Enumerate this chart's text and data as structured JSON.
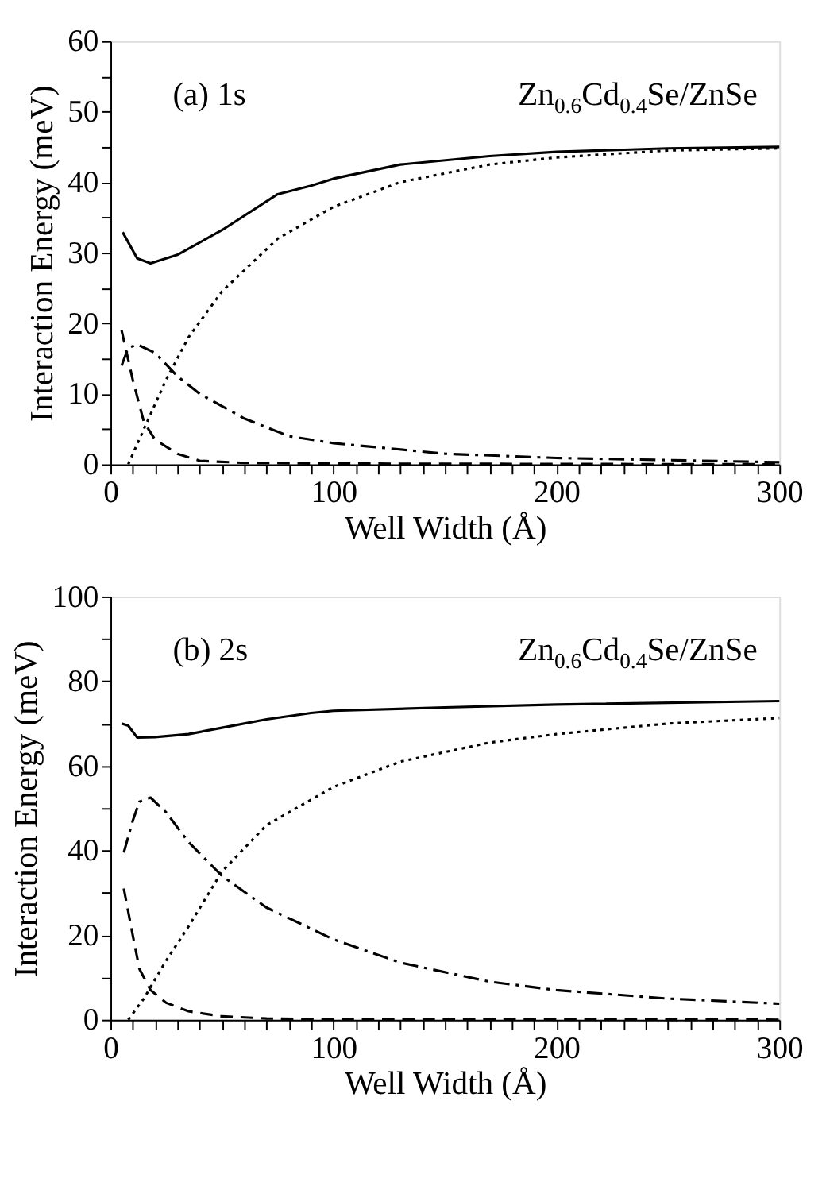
{
  "chart_data": [
    {
      "type": "line",
      "xlabel": "Well Width (Å)",
      "ylabel": "Interaction Energy (meV)",
      "annotations": [
        "(a)  1s",
        "Zn$_{0.6}$Cd$_{0.4}$Se/ZnSe"
      ],
      "xlim": [
        0,
        300
      ],
      "ylim": [
        0,
        60
      ],
      "grid": false,
      "marker": "none",
      "xticks": [
        0,
        {
          "value": 10,
          "label": null
        },
        {
          "value": 20,
          "label": null
        },
        {
          "value": 30,
          "label": null
        },
        {
          "value": 40,
          "label": null
        },
        {
          "value": 50,
          "label": null
        },
        {
          "value": 60,
          "label": null
        },
        {
          "value": 70,
          "label": null
        },
        {
          "value": 80,
          "label": null
        },
        {
          "value": 90,
          "label": null
        },
        100,
        {
          "value": 110,
          "label": null
        },
        {
          "value": 120,
          "label": null
        },
        {
          "value": 130,
          "label": null
        },
        {
          "value": 140,
          "label": null
        },
        {
          "value": 150,
          "label": null
        },
        {
          "value": 160,
          "label": null
        },
        {
          "value": 170,
          "label": null
        },
        {
          "value": 180,
          "label": null
        },
        {
          "value": 190,
          "label": null
        },
        200,
        {
          "value": 210,
          "label": null
        },
        {
          "value": 220,
          "label": null
        },
        {
          "value": 230,
          "label": null
        },
        {
          "value": 240,
          "label": null
        },
        {
          "value": 250,
          "label": null
        },
        {
          "value": 260,
          "label": null
        },
        {
          "value": 270,
          "label": null
        },
        {
          "value": 280,
          "label": null
        },
        {
          "value": 290,
          "label": null
        },
        300
      ],
      "yticks": [
        0,
        {
          "value": 5,
          "label": null
        },
        10,
        {
          "value": 15,
          "label": null
        },
        20,
        {
          "value": 25,
          "label": null
        },
        30,
        {
          "value": 35,
          "label": null
        },
        40,
        {
          "value": 45,
          "label": null
        },
        50,
        {
          "value": 55,
          "label": null
        },
        60
      ],
      "series": [
        {
          "color": "#000000",
          "line_style": "solid",
          "x": [
            5.5,
            12,
            18,
            30,
            50,
            75,
            90,
            100,
            130,
            170,
            200,
            250,
            300
          ],
          "values": [
            32.9,
            29.2,
            28.5,
            29.7,
            33.2,
            38.3,
            39.5,
            40.5,
            42.5,
            43.7,
            44.3,
            44.8,
            45
          ]
        },
        {
          "color": "#000000",
          "line_style": "dotted",
          "x": [
            8,
            15,
            25,
            35,
            50,
            75,
            100,
            130,
            170,
            200,
            250,
            300
          ],
          "values": [
            0,
            5,
            12,
            18,
            24.5,
            32,
            36.5,
            40,
            42.5,
            43.5,
            44.5,
            44.8
          ]
        },
        {
          "color": "#000000",
          "line_style": "dashed",
          "x": [
            5,
            10,
            15,
            20,
            30,
            40,
            60,
            100,
            300
          ],
          "values": [
            19,
            12,
            6,
            3.5,
            1.5,
            0.5,
            0.2,
            0.1,
            0
          ]
        },
        {
          "color": "#000000",
          "line_style": "dashdot",
          "x": [
            5,
            8,
            12,
            20,
            30,
            40,
            60,
            80,
            100,
            150,
            200,
            300
          ],
          "values": [
            14,
            16.5,
            17,
            15.8,
            12.5,
            10,
            6.5,
            4,
            3,
            1.5,
            0.9,
            0.3
          ]
        }
      ]
    },
    {
      "type": "line",
      "xlabel": "Well Width (Å)",
      "ylabel": "Interaction Energy (meV)",
      "annotations": [
        "(b)  2s",
        "Zn$_{0.6}$Cd$_{0.4}$Se/ZnSe"
      ],
      "xlim": [
        0,
        300
      ],
      "ylim": [
        0,
        100
      ],
      "grid": false,
      "marker": "none",
      "xticks": [
        0,
        {
          "value": 10,
          "label": null
        },
        {
          "value": 20,
          "label": null
        },
        {
          "value": 30,
          "label": null
        },
        {
          "value": 40,
          "label": null
        },
        {
          "value": 50,
          "label": null
        },
        {
          "value": 60,
          "label": null
        },
        {
          "value": 70,
          "label": null
        },
        {
          "value": 80,
          "label": null
        },
        {
          "value": 90,
          "label": null
        },
        100,
        {
          "value": 110,
          "label": null
        },
        {
          "value": 120,
          "label": null
        },
        {
          "value": 130,
          "label": null
        },
        {
          "value": 140,
          "label": null
        },
        {
          "value": 150,
          "label": null
        },
        {
          "value": 160,
          "label": null
        },
        {
          "value": 170,
          "label": null
        },
        {
          "value": 180,
          "label": null
        },
        {
          "value": 190,
          "label": null
        },
        200,
        {
          "value": 210,
          "label": null
        },
        {
          "value": 220,
          "label": null
        },
        {
          "value": 230,
          "label": null
        },
        {
          "value": 240,
          "label": null
        },
        {
          "value": 250,
          "label": null
        },
        {
          "value": 260,
          "label": null
        },
        {
          "value": 270,
          "label": null
        },
        {
          "value": 280,
          "label": null
        },
        {
          "value": 290,
          "label": null
        },
        300
      ],
      "yticks": [
        0,
        {
          "value": 10,
          "label": null
        },
        20,
        {
          "value": 30,
          "label": null
        },
        40,
        {
          "value": 50,
          "label": null
        },
        60,
        {
          "value": 70,
          "label": null
        },
        80,
        {
          "value": 90,
          "label": null
        },
        100
      ],
      "series": [
        {
          "color": "#000000",
          "line_style": "solid",
          "x": [
            5,
            8,
            12,
            20,
            35,
            50,
            70,
            90,
            100,
            150,
            200,
            300
          ],
          "values": [
            70,
            69.5,
            66.7,
            66.8,
            67.5,
            69,
            71,
            72.5,
            73,
            73.8,
            74.5,
            75.3
          ]
        },
        {
          "color": "#000000",
          "line_style": "dotted",
          "x": [
            8,
            15,
            25,
            35,
            50,
            70,
            100,
            130,
            170,
            200,
            250,
            300
          ],
          "values": [
            0,
            5,
            14,
            22,
            35,
            46,
            55,
            61,
            65.5,
            67.5,
            70,
            71.3
          ]
        },
        {
          "color": "#000000",
          "line_style": "dashed",
          "x": [
            6,
            10,
            13,
            18,
            25,
            35,
            50,
            70,
            100,
            300
          ],
          "values": [
            31,
            20,
            12,
            7,
            4,
            2,
            0.8,
            0.3,
            0.1,
            0
          ]
        },
        {
          "color": "#000000",
          "line_style": "dashdot",
          "x": [
            6,
            10,
            13,
            18,
            25,
            35,
            50,
            70,
            100,
            130,
            170,
            200,
            250,
            300
          ],
          "values": [
            39.5,
            47,
            51.5,
            52.5,
            49,
            42,
            34,
            26.5,
            19,
            13.5,
            9,
            7,
            5,
            3.8
          ]
        }
      ]
    }
  ]
}
